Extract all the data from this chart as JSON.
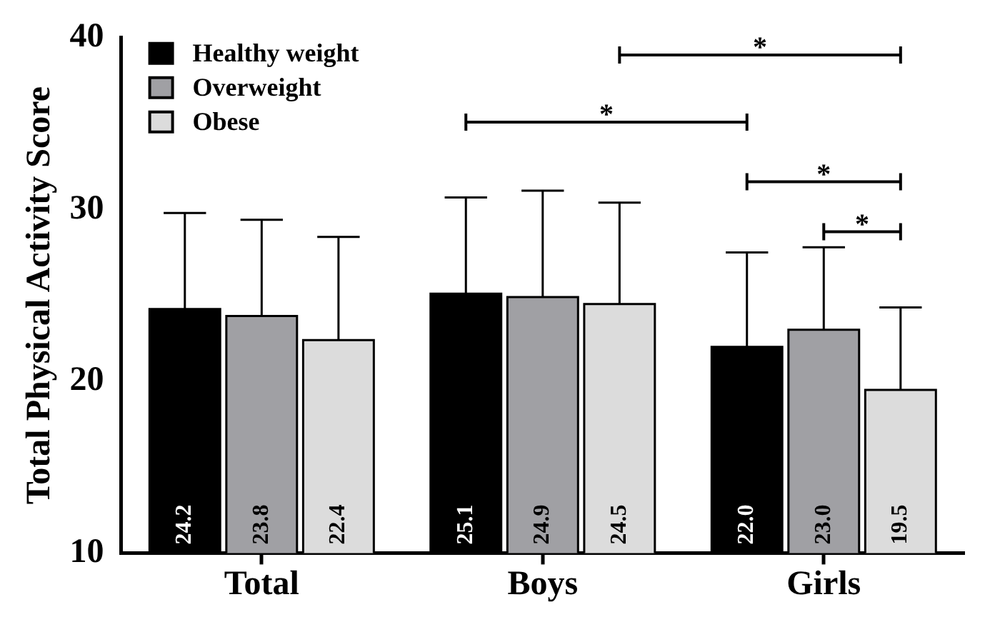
{
  "chart_data": {
    "type": "bar",
    "ylabel": "Total Physical Activity Score",
    "categories": [
      "Total",
      "Boys",
      "Girls"
    ],
    "series": [
      {
        "name": "Healthy weight",
        "color": "#000000",
        "values": [
          24.2,
          25.1,
          22.0
        ],
        "value_labels": [
          "24.2",
          "25.1",
          "22.0"
        ],
        "errors": [
          [
            24.2,
            29.8
          ],
          [
            25.1,
            30.7
          ],
          [
            22.0,
            27.5
          ]
        ]
      },
      {
        "name": "Overweight",
        "color": "#a0a0a4",
        "values": [
          23.8,
          24.9,
          23.0
        ],
        "value_labels": [
          "23.8",
          "24.9",
          "23.0"
        ],
        "errors": [
          [
            23.8,
            29.4
          ],
          [
            24.9,
            31.1
          ],
          [
            23.0,
            27.8
          ]
        ]
      },
      {
        "name": "Obese",
        "color": "#dcdcdc",
        "values": [
          22.4,
          24.5,
          19.5
        ],
        "value_labels": [
          "22.4",
          "24.5",
          "19.5"
        ],
        "errors": [
          [
            22.4,
            28.4
          ],
          [
            24.5,
            30.4
          ],
          [
            19.5,
            24.3
          ]
        ]
      }
    ],
    "ylim": [
      10,
      40
    ],
    "yticks": [
      10,
      20,
      30,
      40
    ],
    "grid": false,
    "legend": "top left",
    "annotations": [
      "*",
      "*",
      "*",
      "*"
    ]
  }
}
